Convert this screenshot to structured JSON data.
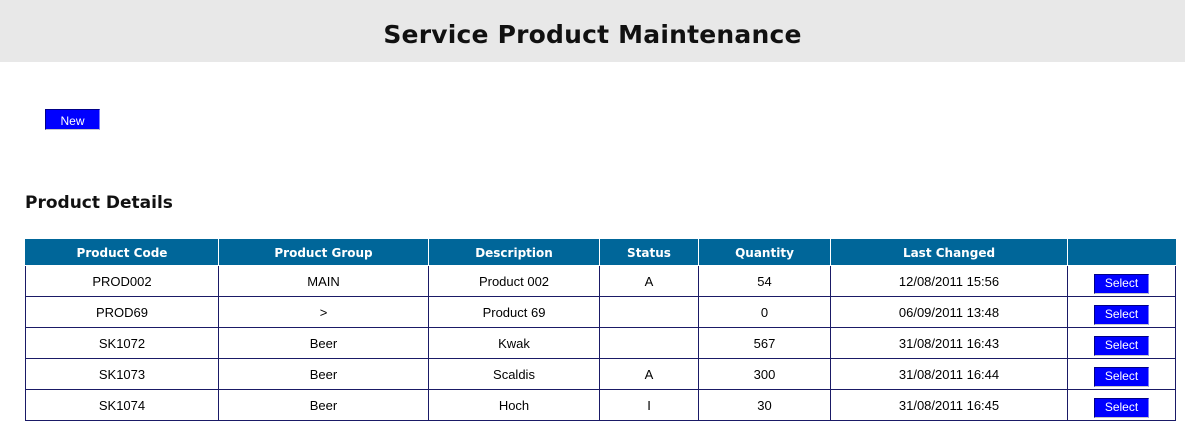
{
  "header": {
    "title": "Service Product Maintenance"
  },
  "toolbar": {
    "new_label": "New"
  },
  "section": {
    "title": "Product Details"
  },
  "table": {
    "columns": [
      "Product Code",
      "Product Group",
      "Description",
      "Status",
      "Quantity",
      "Last Changed",
      ""
    ],
    "rows": [
      {
        "code": "PROD002",
        "group": "MAIN",
        "description": "Product 002",
        "status": "A",
        "quantity": "54",
        "last_changed": "12/08/2011 15:56",
        "action": "Select"
      },
      {
        "code": "PROD69",
        "group": ">",
        "description": "Product 69",
        "status": "",
        "quantity": "0",
        "last_changed": "06/09/2011 13:48",
        "action": "Select"
      },
      {
        "code": "SK1072",
        "group": "Beer",
        "description": "Kwak",
        "status": "",
        "quantity": "567",
        "last_changed": "31/08/2011 16:43",
        "action": "Select"
      },
      {
        "code": "SK1073",
        "group": "Beer",
        "description": "Scaldis",
        "status": "A",
        "quantity": "300",
        "last_changed": "31/08/2011 16:44",
        "action": "Select"
      },
      {
        "code": "SK1074",
        "group": "Beer",
        "description": "Hoch",
        "status": "I",
        "quantity": "30",
        "last_changed": "31/08/2011 16:45",
        "action": "Select"
      }
    ]
  },
  "colors": {
    "header_bg": "#e8e8e8",
    "table_header_bg": "#006699",
    "button_bg": "#0000ff",
    "cell_border": "#1a1a66"
  }
}
